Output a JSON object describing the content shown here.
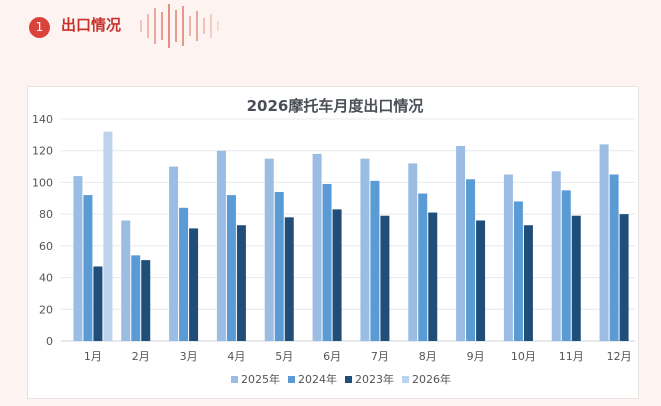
{
  "header": {
    "badge": "1",
    "title": "出口情况"
  },
  "colors": {
    "accent": "#d9433a",
    "background": "#fdf3f1"
  },
  "chart_data": {
    "type": "bar",
    "title": "2026摩托车月度出口情况",
    "xlabel": "",
    "ylabel": "",
    "categories": [
      "1月",
      "2月",
      "3月",
      "4月",
      "5月",
      "6月",
      "7月",
      "8月",
      "9月",
      "10月",
      "11月",
      "12月"
    ],
    "ylim": [
      0,
      140
    ],
    "yticks": [
      0,
      20,
      40,
      60,
      80,
      100,
      120,
      140
    ],
    "grid": true,
    "legend_position": "bottom",
    "series": [
      {
        "name": "2025年",
        "color": "#9bbde3",
        "values": [
          104,
          76,
          110,
          120,
          115,
          118,
          115,
          112,
          123,
          105,
          107,
          124
        ]
      },
      {
        "name": "2024年",
        "color": "#5b9bd5",
        "values": [
          92,
          54,
          84,
          92,
          94,
          99,
          101,
          93,
          102,
          88,
          95,
          105
        ]
      },
      {
        "name": "2023年",
        "color": "#1f4e79",
        "values": [
          47,
          51,
          71,
          73,
          78,
          83,
          79,
          81,
          76,
          73,
          79,
          80
        ]
      },
      {
        "name": "2026年",
        "color": "#bdd3ed",
        "values": [
          132,
          null,
          null,
          null,
          null,
          null,
          null,
          null,
          null,
          null,
          null,
          null
        ]
      }
    ]
  }
}
